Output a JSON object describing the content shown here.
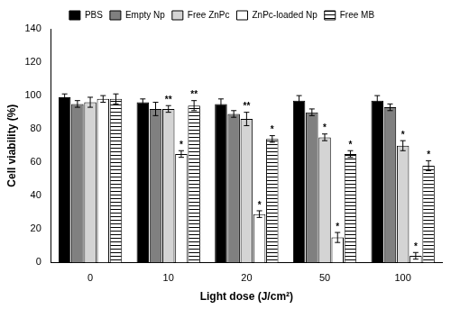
{
  "chart_data": {
    "type": "bar",
    "x_label": "Light dose (J/cm²)",
    "y_label": "Cell viability (%)",
    "categories": [
      "0",
      "10",
      "20",
      "50",
      "100"
    ],
    "ylim": [
      0,
      140
    ],
    "yticks": [
      0,
      20,
      40,
      60,
      80,
      100,
      120,
      140
    ],
    "grid": false,
    "legend": "top",
    "series": [
      {
        "name": "PBS",
        "color": "#000000",
        "values": [
          99,
          96,
          95,
          97,
          97
        ],
        "errors": [
          2,
          2,
          3,
          3,
          3
        ],
        "significance": [
          null,
          null,
          null,
          null,
          null
        ]
      },
      {
        "name": "Empty Np",
        "color": "#808080",
        "values": [
          95,
          92,
          89,
          90,
          93
        ],
        "errors": [
          2,
          4,
          2,
          2,
          2
        ],
        "significance": [
          null,
          null,
          null,
          null,
          null
        ]
      },
      {
        "name": "Free ZnPc",
        "color": "#d4d4d4",
        "values": [
          96,
          92,
          86,
          75,
          70
        ],
        "errors": [
          3,
          2,
          4,
          2,
          3
        ],
        "significance": [
          null,
          "**",
          "**",
          "*",
          "*"
        ]
      },
      {
        "name": "ZnPc-loaded Np",
        "color": "#ffffff",
        "values": [
          98,
          65,
          29,
          15,
          4
        ],
        "errors": [
          2,
          2,
          2,
          3,
          2
        ],
        "significance": [
          null,
          "*",
          "*",
          "*",
          "*"
        ]
      },
      {
        "name": "Free MB",
        "color": "#ffffff",
        "marker": "hlines",
        "values": [
          98,
          94,
          74,
          65,
          58
        ],
        "errors": [
          3,
          3,
          2,
          2,
          3
        ],
        "significance": [
          null,
          "**",
          "*",
          "*",
          "*"
        ]
      }
    ]
  }
}
